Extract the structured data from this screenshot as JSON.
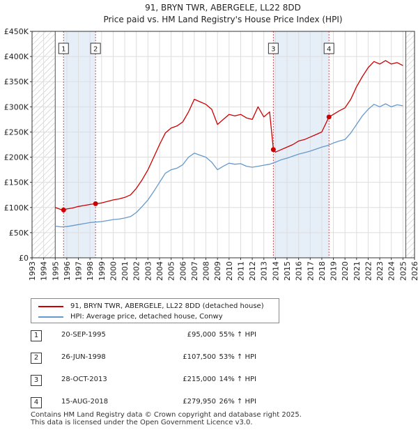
{
  "chart_data": {
    "type": "line",
    "title": "91, BRYN TWR, ABERGELE, LL22 8DD",
    "subtitle": "Price paid vs. HM Land Registry's House Price Index (HPI)",
    "ylim": [
      0,
      450000
    ],
    "xlim": [
      1993,
      2026
    ],
    "y_ticks": [
      0,
      50000,
      100000,
      150000,
      200000,
      250000,
      300000,
      350000,
      400000,
      450000
    ],
    "y_tick_labels": [
      "£0",
      "£50K",
      "£100K",
      "£150K",
      "£200K",
      "£250K",
      "£300K",
      "£350K",
      "£400K",
      "£450K"
    ],
    "x_ticks": [
      1993,
      1994,
      1995,
      1996,
      1997,
      1998,
      1999,
      2000,
      2001,
      2002,
      2003,
      2004,
      2005,
      2006,
      2007,
      2008,
      2009,
      2010,
      2011,
      2012,
      2013,
      2014,
      2015,
      2016,
      2017,
      2018,
      2019,
      2020,
      2021,
      2022,
      2023,
      2024,
      2025,
      2026
    ],
    "x_tick_labels": [
      "1993",
      "1994",
      "1995",
      "1996",
      "1997",
      "1998",
      "1999",
      "2000",
      "2001",
      "2002",
      "2003",
      "2004",
      "2005",
      "2006",
      "2007",
      "2008",
      "2009",
      "2010",
      "2011",
      "2012",
      "2013",
      "2014",
      "2015",
      "2016",
      "2017",
      "2018",
      "2019",
      "2020",
      "2021",
      "2022",
      "2023",
      "2024",
      "2025",
      "2026"
    ],
    "hatch_regions": [
      [
        1993,
        1995.0
      ],
      [
        2025.25,
        2026
      ]
    ],
    "shaded_regions": [
      [
        1995.72,
        1998.48
      ],
      [
        2013.82,
        2018.62
      ]
    ],
    "grid": true,
    "series": [
      {
        "name": "91, BRYN TWR, ABERGELE, LL22 8DD (detached house)",
        "color": "#cc0000",
        "points": [
          [
            1995.0,
            100000
          ],
          [
            1995.5,
            96000
          ],
          [
            1995.72,
            95000
          ],
          [
            1996.0,
            97000
          ],
          [
            1996.5,
            99000
          ],
          [
            1997.0,
            102000
          ],
          [
            1997.5,
            104000
          ],
          [
            1998.0,
            106000
          ],
          [
            1998.48,
            107500
          ],
          [
            1999.0,
            109000
          ],
          [
            1999.5,
            112000
          ],
          [
            2000.0,
            115000
          ],
          [
            2000.5,
            117000
          ],
          [
            2001.0,
            120000
          ],
          [
            2001.5,
            125000
          ],
          [
            2002.0,
            138000
          ],
          [
            2002.5,
            155000
          ],
          [
            2003.0,
            175000
          ],
          [
            2003.5,
            200000
          ],
          [
            2004.0,
            225000
          ],
          [
            2004.5,
            248000
          ],
          [
            2005.0,
            258000
          ],
          [
            2005.5,
            262000
          ],
          [
            2006.0,
            270000
          ],
          [
            2006.5,
            290000
          ],
          [
            2007.0,
            315000
          ],
          [
            2007.5,
            310000
          ],
          [
            2008.0,
            305000
          ],
          [
            2008.5,
            295000
          ],
          [
            2009.0,
            265000
          ],
          [
            2009.5,
            275000
          ],
          [
            2010.0,
            285000
          ],
          [
            2010.5,
            282000
          ],
          [
            2011.0,
            285000
          ],
          [
            2011.5,
            278000
          ],
          [
            2012.0,
            275000
          ],
          [
            2012.5,
            300000
          ],
          [
            2013.0,
            280000
          ],
          [
            2013.5,
            290000
          ],
          [
            2013.82,
            215000
          ],
          [
            2014.0,
            210000
          ],
          [
            2014.5,
            215000
          ],
          [
            2015.0,
            220000
          ],
          [
            2015.5,
            225000
          ],
          [
            2016.0,
            232000
          ],
          [
            2016.5,
            235000
          ],
          [
            2017.0,
            240000
          ],
          [
            2017.5,
            245000
          ],
          [
            2018.0,
            250000
          ],
          [
            2018.62,
            279950
          ],
          [
            2019.0,
            285000
          ],
          [
            2019.5,
            292000
          ],
          [
            2020.0,
            298000
          ],
          [
            2020.5,
            315000
          ],
          [
            2021.0,
            340000
          ],
          [
            2021.5,
            360000
          ],
          [
            2022.0,
            378000
          ],
          [
            2022.5,
            390000
          ],
          [
            2023.0,
            385000
          ],
          [
            2023.5,
            392000
          ],
          [
            2024.0,
            385000
          ],
          [
            2024.5,
            388000
          ],
          [
            2025.0,
            382000
          ]
        ]
      },
      {
        "name": "HPI: Average price, detached house, Conwy",
        "color": "#6699cc",
        "points": [
          [
            1995.0,
            63000
          ],
          [
            1995.5,
            61500
          ],
          [
            1996.0,
            62000
          ],
          [
            1996.5,
            64000
          ],
          [
            1997.0,
            66000
          ],
          [
            1997.5,
            68000
          ],
          [
            1998.0,
            70000
          ],
          [
            1998.5,
            71000
          ],
          [
            1999.0,
            72000
          ],
          [
            1999.5,
            74000
          ],
          [
            2000.0,
            76000
          ],
          [
            2000.5,
            77000
          ],
          [
            2001.0,
            79000
          ],
          [
            2001.5,
            82000
          ],
          [
            2002.0,
            90000
          ],
          [
            2002.5,
            102000
          ],
          [
            2003.0,
            115000
          ],
          [
            2003.5,
            132000
          ],
          [
            2004.0,
            150000
          ],
          [
            2004.5,
            168000
          ],
          [
            2005.0,
            175000
          ],
          [
            2005.5,
            178000
          ],
          [
            2006.0,
            185000
          ],
          [
            2006.5,
            200000
          ],
          [
            2007.0,
            208000
          ],
          [
            2007.5,
            204000
          ],
          [
            2008.0,
            200000
          ],
          [
            2008.5,
            190000
          ],
          [
            2009.0,
            175000
          ],
          [
            2009.5,
            182000
          ],
          [
            2010.0,
            188000
          ],
          [
            2010.5,
            186000
          ],
          [
            2011.0,
            187000
          ],
          [
            2011.5,
            182000
          ],
          [
            2012.0,
            180000
          ],
          [
            2012.5,
            182000
          ],
          [
            2013.0,
            184000
          ],
          [
            2013.5,
            186000
          ],
          [
            2014.0,
            190000
          ],
          [
            2014.5,
            195000
          ],
          [
            2015.0,
            198000
          ],
          [
            2015.5,
            202000
          ],
          [
            2016.0,
            206000
          ],
          [
            2016.5,
            209000
          ],
          [
            2017.0,
            212000
          ],
          [
            2017.5,
            216000
          ],
          [
            2018.0,
            220000
          ],
          [
            2018.5,
            223000
          ],
          [
            2019.0,
            228000
          ],
          [
            2019.5,
            232000
          ],
          [
            2020.0,
            235000
          ],
          [
            2020.5,
            248000
          ],
          [
            2021.0,
            265000
          ],
          [
            2021.5,
            282000
          ],
          [
            2022.0,
            295000
          ],
          [
            2022.5,
            305000
          ],
          [
            2023.0,
            300000
          ],
          [
            2023.5,
            306000
          ],
          [
            2024.0,
            300000
          ],
          [
            2024.5,
            304000
          ],
          [
            2025.0,
            302000
          ]
        ]
      }
    ],
    "transactions": [
      {
        "label": "1",
        "x": 1995.72,
        "price": 95000
      },
      {
        "label": "2",
        "x": 1998.48,
        "price": 107500
      },
      {
        "label": "3",
        "x": 2013.82,
        "price": 215000
      },
      {
        "label": "4",
        "x": 2018.62,
        "price": 279950
      }
    ]
  },
  "legend": {
    "items": [
      {
        "label": "91, BRYN TWR, ABERGELE, LL22 8DD (detached house)",
        "color": "#cc0000"
      },
      {
        "label": "HPI: Average price, detached house, Conwy",
        "color": "#6699cc"
      }
    ]
  },
  "table": {
    "rows": [
      {
        "num": "1",
        "date": "20-SEP-1995",
        "price": "£95,000",
        "hpi": "55% ↑ HPI"
      },
      {
        "num": "2",
        "date": "26-JUN-1998",
        "price": "£107,500",
        "hpi": "53% ↑ HPI"
      },
      {
        "num": "3",
        "date": "28-OCT-2013",
        "price": "£215,000",
        "hpi": "14% ↑ HPI"
      },
      {
        "num": "4",
        "date": "15-AUG-2018",
        "price": "£279,950",
        "hpi": "26% ↑ HPI"
      }
    ]
  },
  "footer": {
    "line1": "Contains HM Land Registry data © Crown copyright and database right 2025.",
    "line2": "This data is licensed under the Open Government Licence v3.0."
  }
}
